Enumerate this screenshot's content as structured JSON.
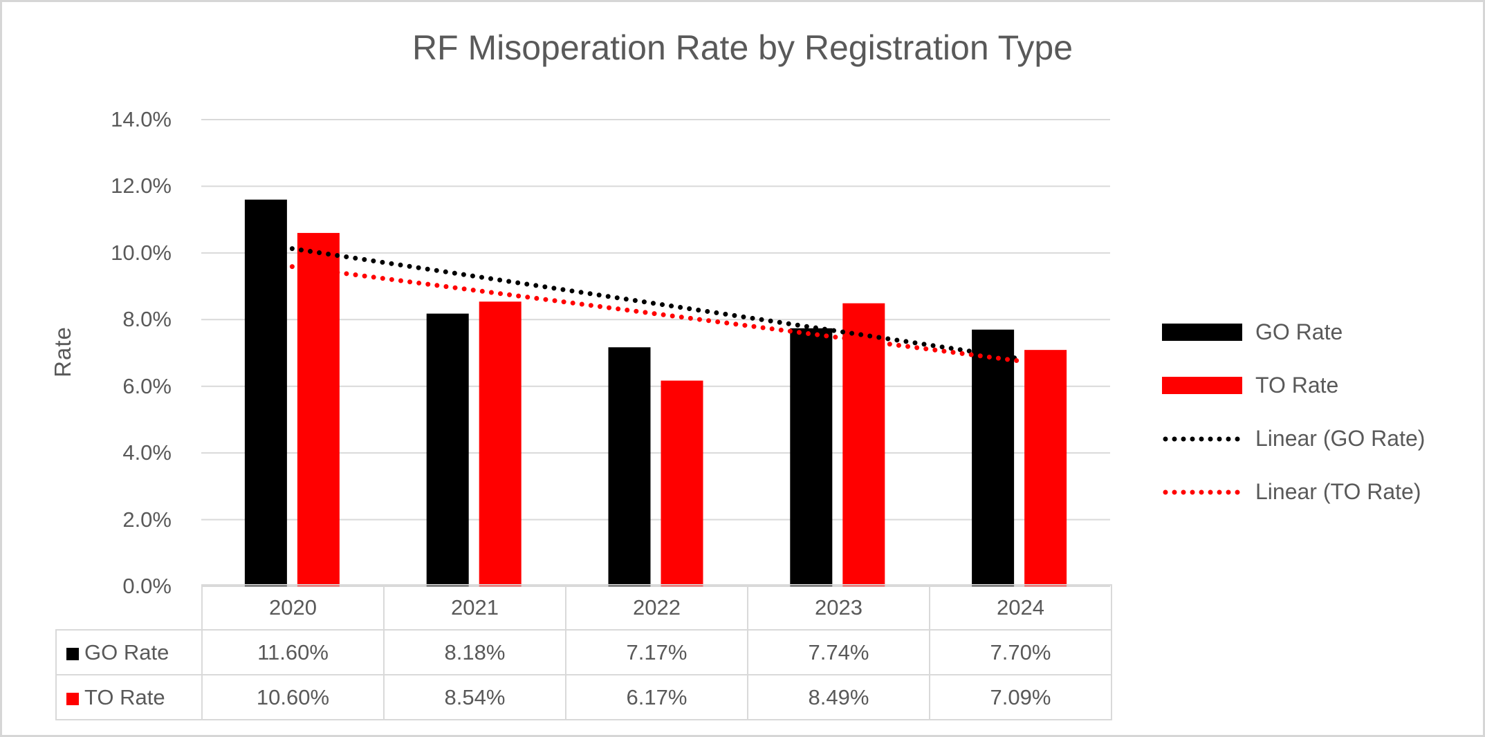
{
  "title": "RF Misoperation Rate by Registration Type",
  "colors": {
    "go_series": "#000000",
    "to_series": "#FF0000",
    "text": "#595959",
    "gridline": "#D9D9D9",
    "table_border": "#D9D9D9",
    "canvas_border": "#D6D6D6"
  },
  "chart_data": {
    "type": "bar",
    "title": "RF Misoperation Rate by Registration Type",
    "categories": [
      "2020",
      "2021",
      "2022",
      "2023",
      "2024"
    ],
    "series": [
      {
        "name": "GO Rate",
        "color": "#000000",
        "values": [
          11.6,
          8.18,
          7.17,
          7.74,
          7.7
        ],
        "formatted": [
          "11.60%",
          "8.18%",
          "7.17%",
          "7.74%",
          "7.70%"
        ]
      },
      {
        "name": "TO Rate",
        "color": "#FF0000",
        "values": [
          10.6,
          8.54,
          6.17,
          8.49,
          7.09
        ],
        "formatted": [
          "10.60%",
          "8.54%",
          "6.17%",
          "8.49%",
          "7.09%"
        ]
      }
    ],
    "trendlines": [
      {
        "name": "Linear (GO Rate)",
        "color": "#000000",
        "start_value": 10.13,
        "end_value": 6.83,
        "style": "dotted"
      },
      {
        "name": "Linear (TO Rate)",
        "color": "#FF0000",
        "start_value": 9.59,
        "end_value": 6.76,
        "style": "dotted"
      }
    ],
    "xlabel": "",
    "ylabel": "Rate",
    "ylim": [
      0,
      14
    ],
    "ytick_step": 2,
    "yticks": [
      "14.0%",
      "12.0%",
      "10.0%",
      "8.0%",
      "6.0%",
      "4.0%",
      "2.0%",
      "0.0%"
    ],
    "grid": true,
    "legend": [
      "GO Rate",
      "TO Rate",
      "Linear (GO Rate)",
      "Linear (TO Rate)"
    ],
    "legend_position": "right",
    "data_table_shown": true
  }
}
